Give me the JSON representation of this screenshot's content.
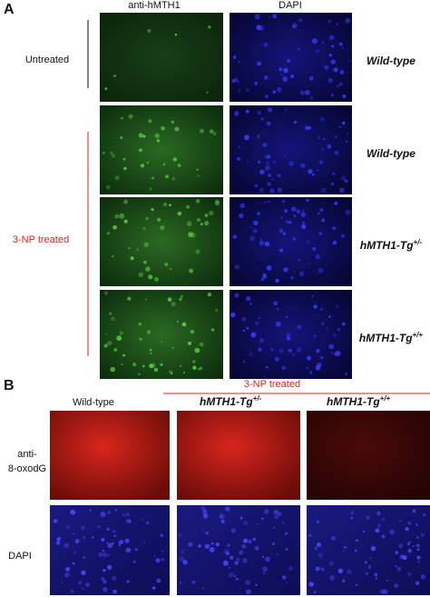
{
  "panel_a": {
    "label": "A",
    "columns": [
      "anti-hMTH1",
      "DAPI"
    ],
    "groups": {
      "untreated": "Untreated",
      "treated": "3-NP treated"
    },
    "rows": [
      {
        "base": "Wild-type"
      },
      {
        "base": "Wild-type"
      },
      {
        "base": "hMTH1-Tg",
        "sup": "+/-"
      },
      {
        "base": "hMTH1-Tg",
        "sup": "+/+"
      }
    ]
  },
  "panel_b": {
    "label": "B",
    "header": "3-NP treated",
    "columns": [
      {
        "base": "Wild-type"
      },
      {
        "base": "hMTH1-Tg",
        "sup": "+/-"
      },
      {
        "base": "hMTH1-Tg",
        "sup": "+/+"
      }
    ],
    "rows": [
      [
        "anti-",
        "8-oxodG"
      ],
      [
        "DAPI"
      ]
    ]
  }
}
